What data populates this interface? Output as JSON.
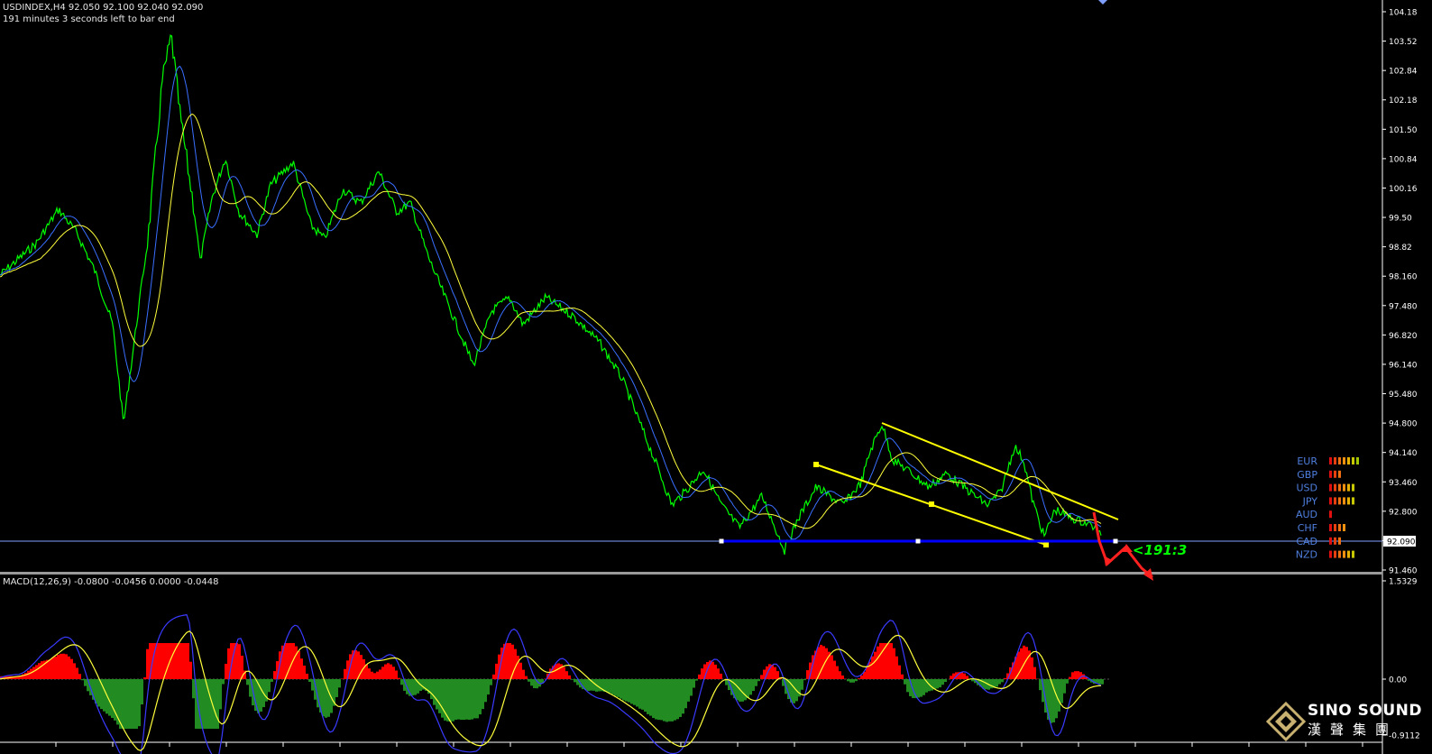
{
  "chart_header": {
    "symbol_line": "USDINDEX,H4  92.050 92.100 92.040 92.090",
    "timer_line": "191 minutes 3 seconds left to bar end"
  },
  "price_axis": {
    "ticks": [
      "104.18",
      "103.52",
      "102.84",
      "102.18",
      "101.50",
      "100.84",
      "100.16",
      "99.50",
      "98.82",
      "98.160",
      "97.480",
      "96.820",
      "96.140",
      "95.480",
      "94.800",
      "94.140",
      "93.460",
      "92.800",
      "92.090",
      "91.460"
    ],
    "current_price": "92.090"
  },
  "macd": {
    "label": "MACD(12,26,9) -0.0800 -0.0456 0.0000 -0.0448",
    "ticks": [
      "1.5329",
      "0.00",
      "-0.9112"
    ]
  },
  "currency_strength": {
    "items": [
      {
        "name": "EUR",
        "bars": 7
      },
      {
        "name": "GBP",
        "bars": 3
      },
      {
        "name": "USD",
        "bars": 6
      },
      {
        "name": "JPY",
        "bars": 6
      },
      {
        "name": "AUD",
        "bars": 1
      },
      {
        "name": "CHF",
        "bars": 4
      },
      {
        "name": "CAD",
        "bars": 3
      },
      {
        "name": "NZD",
        "bars": 6
      }
    ]
  },
  "annotation": {
    "label": "<191:3"
  },
  "logo": {
    "line1": "SINO SOUND",
    "line2": "漢聲集團"
  },
  "colors": {
    "background": "#000000",
    "price": "#00ff00",
    "ma_fast": "#3a6fff",
    "ma_slow": "#ffff3c",
    "channel": "#ffff00",
    "support": "#0000ff",
    "macd_pos": "#ff0000",
    "macd_neg": "#228b22",
    "arrow": "#ff2020",
    "axis_text": "#ffffff"
  }
}
